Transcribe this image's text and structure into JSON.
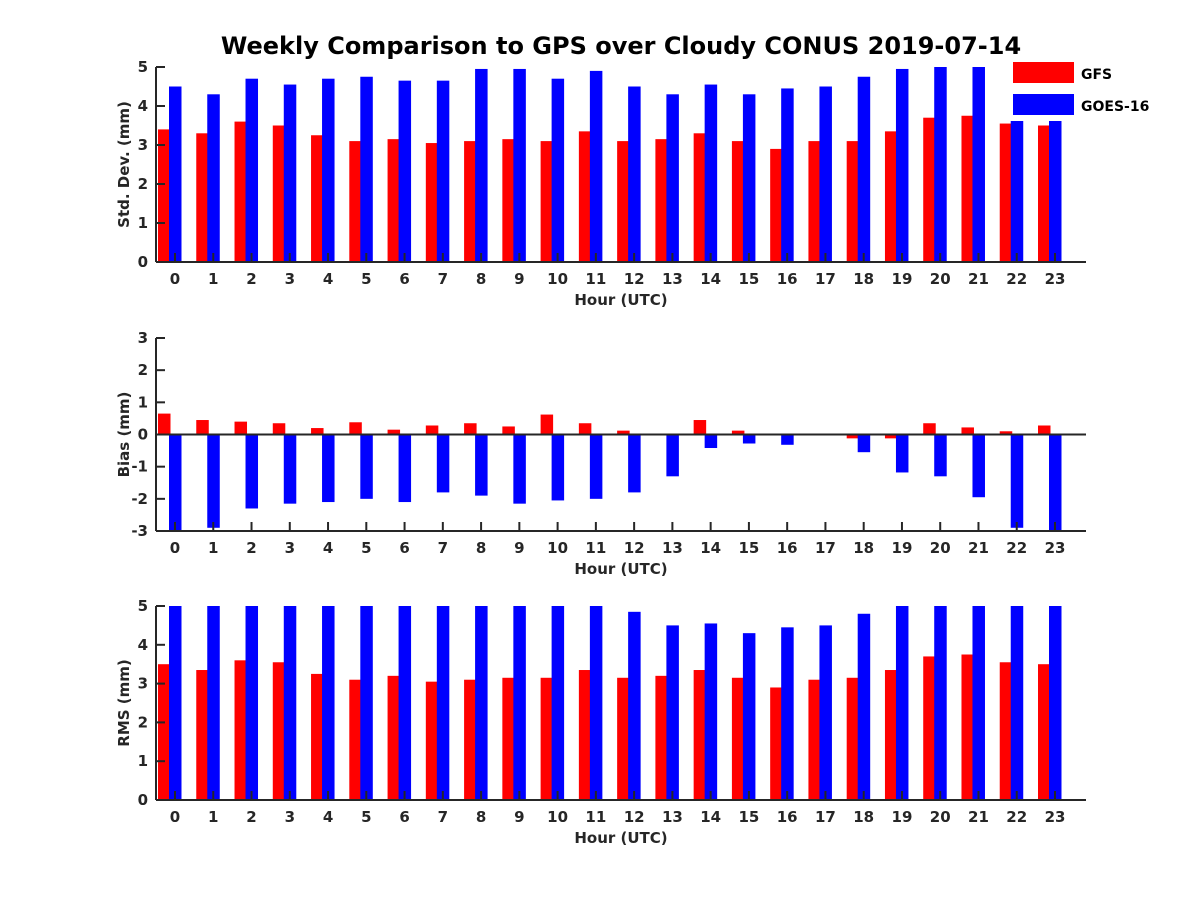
{
  "title": "Weekly Comparison to GPS over Cloudy CONUS 2019-07-14",
  "legend": [
    {
      "name": "GFS",
      "color": "#ff0000"
    },
    {
      "name": "GOES-16",
      "color": "#0000ff"
    }
  ],
  "chart_data": [
    {
      "type": "bar",
      "xlabel": "Hour (UTC)",
      "ylabel": "Std. Dev. (mm)",
      "ylim": [
        0,
        5
      ],
      "yticks": [
        0,
        1,
        2,
        3,
        4,
        5
      ],
      "categories": [
        "0",
        "1",
        "2",
        "3",
        "4",
        "5",
        "6",
        "7",
        "8",
        "9",
        "10",
        "11",
        "12",
        "13",
        "14",
        "15",
        "16",
        "17",
        "18",
        "19",
        "20",
        "21",
        "22",
        "23"
      ],
      "legend_position": "top-right",
      "series": [
        {
          "name": "GFS",
          "color": "#ff0000",
          "values": [
            3.4,
            3.3,
            3.6,
            3.5,
            3.25,
            3.1,
            3.15,
            3.05,
            3.1,
            3.15,
            3.1,
            3.35,
            3.1,
            3.15,
            3.3,
            3.1,
            2.9,
            3.1,
            3.1,
            3.35,
            3.7,
            3.75,
            3.55,
            3.5
          ]
        },
        {
          "name": "GOES-16",
          "color": "#0000ff",
          "values": [
            4.5,
            4.3,
            4.7,
            4.55,
            4.7,
            4.75,
            4.65,
            4.65,
            4.95,
            4.95,
            4.7,
            4.9,
            4.5,
            4.3,
            4.55,
            4.3,
            4.45,
            4.5,
            4.75,
            4.95,
            5.0,
            5.0,
            5.0,
            5.0
          ]
        }
      ]
    },
    {
      "type": "bar",
      "xlabel": "Hour (UTC)",
      "ylabel": "Bias (mm)",
      "ylim": [
        -3,
        3
      ],
      "yticks": [
        -3,
        -2,
        -1,
        0,
        1,
        2,
        3
      ],
      "categories": [
        "0",
        "1",
        "2",
        "3",
        "4",
        "5",
        "6",
        "7",
        "8",
        "9",
        "10",
        "11",
        "12",
        "13",
        "14",
        "15",
        "16",
        "17",
        "18",
        "19",
        "20",
        "21",
        "22",
        "23"
      ],
      "series": [
        {
          "name": "GFS",
          "color": "#ff0000",
          "values": [
            0.65,
            0.45,
            0.4,
            0.35,
            0.2,
            0.38,
            0.15,
            0.28,
            0.35,
            0.25,
            0.62,
            0.35,
            0.12,
            0.02,
            0.45,
            0.12,
            0.0,
            0.0,
            -0.12,
            -0.12,
            0.35,
            0.22,
            0.1,
            0.28
          ]
        },
        {
          "name": "GOES-16",
          "color": "#0000ff",
          "values": [
            -3.0,
            -2.9,
            -2.3,
            -2.15,
            -2.1,
            -2.0,
            -2.1,
            -1.8,
            -1.9,
            -2.15,
            -2.05,
            -2.0,
            -1.8,
            -1.3,
            -0.42,
            -0.28,
            -0.32,
            0.0,
            -0.55,
            -1.18,
            -1.3,
            -1.95,
            -2.9,
            -3.0
          ]
        }
      ]
    },
    {
      "type": "bar",
      "xlabel": "Hour (UTC)",
      "ylabel": "RMS (mm)",
      "ylim": [
        0,
        5
      ],
      "yticks": [
        0,
        1,
        2,
        3,
        4,
        5
      ],
      "categories": [
        "0",
        "1",
        "2",
        "3",
        "4",
        "5",
        "6",
        "7",
        "8",
        "9",
        "10",
        "11",
        "12",
        "13",
        "14",
        "15",
        "16",
        "17",
        "18",
        "19",
        "20",
        "21",
        "22",
        "23"
      ],
      "series": [
        {
          "name": "GFS",
          "color": "#ff0000",
          "values": [
            3.5,
            3.35,
            3.6,
            3.55,
            3.25,
            3.1,
            3.2,
            3.05,
            3.1,
            3.15,
            3.15,
            3.35,
            3.15,
            3.2,
            3.35,
            3.15,
            2.9,
            3.1,
            3.15,
            3.35,
            3.7,
            3.75,
            3.55,
            3.5
          ]
        },
        {
          "name": "GOES-16",
          "color": "#0000ff",
          "values": [
            5.0,
            5.0,
            5.0,
            5.0,
            5.0,
            5.0,
            5.0,
            5.0,
            5.0,
            5.0,
            5.0,
            5.0,
            4.85,
            4.5,
            4.55,
            4.3,
            4.45,
            4.5,
            4.8,
            5.0,
            5.0,
            5.0,
            5.0,
            5.0
          ]
        }
      ]
    }
  ]
}
